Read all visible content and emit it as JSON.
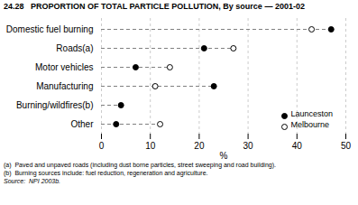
{
  "chart_data": {
    "type": "dot",
    "title": "24.28   PROPORTION OF TOTAL PARTICLE POLLUTION, By source — 2001-02",
    "categories": [
      "Domestic fuel burning",
      "Roads(a)",
      "Motor vehicles",
      "Manufacturing",
      "Burning/wildfires(b)",
      "Other"
    ],
    "series": [
      {
        "name": "Launceston",
        "color": "black",
        "marker": "filled",
        "values": [
          47,
          21,
          7,
          23,
          4,
          3
        ]
      },
      {
        "name": "Melbourne",
        "color": "black",
        "marker": "open",
        "values": [
          43,
          27,
          14,
          11,
          null,
          12
        ]
      }
    ],
    "orientation": "horizontal",
    "x_label": "%",
    "xlim": [
      0,
      50
    ],
    "xticks": [
      0,
      10,
      20,
      30,
      40,
      50
    ],
    "grid": true,
    "legend": "lower right",
    "annotations": [
      "(a)  Paved and unpaved roads (including dust borne particles, street sweeping and road building).",
      "(b)  Burning sources include: fuel reduction, regeneration and agriculture.",
      "Source:  NPI 2003b."
    ]
  }
}
